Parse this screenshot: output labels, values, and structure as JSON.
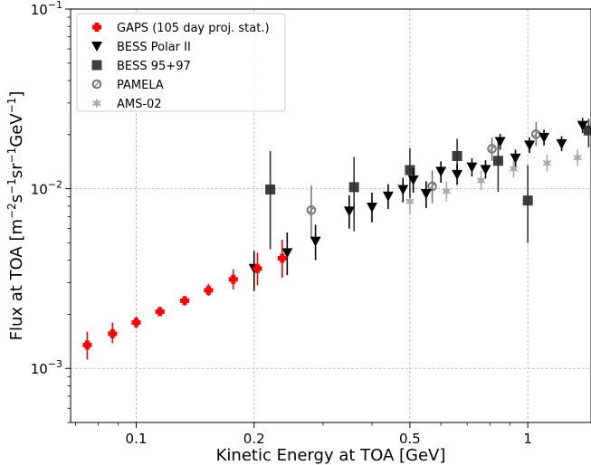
{
  "chart_data": {
    "type": "scatter",
    "xlabel": "Kinetic Energy at TOA [GeV]",
    "ylabel_parts": [
      "Flux at TOA [m",
      "−2",
      "s",
      "−1",
      "sr",
      "−1",
      "GeV",
      "−1",
      "]"
    ],
    "xscale": "log",
    "yscale": "log",
    "xlim": [
      0.068,
      1.45
    ],
    "ylim": [
      0.0005,
      0.1
    ],
    "grid": true,
    "legend_position": "top-left",
    "x_ticks": [
      {
        "value": 0.1,
        "label": "0.1"
      },
      {
        "value": 0.2,
        "label": "0.2"
      },
      {
        "value": 0.5,
        "label": "0.5"
      },
      {
        "value": 1,
        "label": "1"
      }
    ],
    "y_ticks": [
      {
        "value": 0.001,
        "base": "10",
        "exp": "−3"
      },
      {
        "value": 0.01,
        "base": "10",
        "exp": "−2"
      },
      {
        "value": 0.1,
        "base": "10",
        "exp": "−1"
      }
    ],
    "series": [
      {
        "name": "GAPS (105 day proj. stat.)",
        "marker": "square-cross",
        "color": "#ff0000",
        "points": [
          {
            "x": 0.075,
            "y": 0.00135,
            "lo": 0.00112,
            "hi": 0.0016
          },
          {
            "x": 0.087,
            "y": 0.00156,
            "lo": 0.00138,
            "hi": 0.0018
          },
          {
            "x": 0.1,
            "y": 0.0018,
            "lo": 0.00167,
            "hi": 0.00195
          },
          {
            "x": 0.115,
            "y": 0.00207,
            "lo": 0.00195,
            "hi": 0.0022
          },
          {
            "x": 0.133,
            "y": 0.00238,
            "lo": 0.00224,
            "hi": 0.00253
          },
          {
            "x": 0.153,
            "y": 0.00272,
            "lo": 0.00253,
            "hi": 0.00295
          },
          {
            "x": 0.177,
            "y": 0.00313,
            "lo": 0.00275,
            "hi": 0.00355
          },
          {
            "x": 0.204,
            "y": 0.0036,
            "lo": 0.0029,
            "hi": 0.0044
          },
          {
            "x": 0.236,
            "y": 0.0041,
            "lo": 0.0032,
            "hi": 0.0052
          }
        ]
      },
      {
        "name": "BESS Polar II",
        "marker": "triangle-down",
        "color": "#000000",
        "points": [
          {
            "x": 0.2,
            "y": 0.0036,
            "lo": 0.0027,
            "hi": 0.0045
          },
          {
            "x": 0.243,
            "y": 0.0044,
            "lo": 0.0033,
            "hi": 0.0057
          },
          {
            "x": 0.287,
            "y": 0.0051,
            "lo": 0.004,
            "hi": 0.0063
          },
          {
            "x": 0.35,
            "y": 0.0075,
            "lo": 0.006,
            "hi": 0.0092
          },
          {
            "x": 0.4,
            "y": 0.0079,
            "lo": 0.0065,
            "hi": 0.0095
          },
          {
            "x": 0.44,
            "y": 0.0091,
            "lo": 0.0077,
            "hi": 0.0106
          },
          {
            "x": 0.48,
            "y": 0.0099,
            "lo": 0.0084,
            "hi": 0.0115
          },
          {
            "x": 0.51,
            "y": 0.0112,
            "lo": 0.0095,
            "hi": 0.013
          },
          {
            "x": 0.55,
            "y": 0.0094,
            "lo": 0.0078,
            "hi": 0.011
          },
          {
            "x": 0.6,
            "y": 0.0125,
            "lo": 0.0108,
            "hi": 0.0142
          },
          {
            "x": 0.66,
            "y": 0.012,
            "lo": 0.0105,
            "hi": 0.0137
          },
          {
            "x": 0.72,
            "y": 0.0132,
            "lo": 0.0117,
            "hi": 0.0148
          },
          {
            "x": 0.78,
            "y": 0.0128,
            "lo": 0.0114,
            "hi": 0.0144
          },
          {
            "x": 0.85,
            "y": 0.0183,
            "lo": 0.0165,
            "hi": 0.0202
          },
          {
            "x": 0.93,
            "y": 0.0148,
            "lo": 0.0133,
            "hi": 0.0165
          },
          {
            "x": 1.01,
            "y": 0.0175,
            "lo": 0.0158,
            "hi": 0.0193
          },
          {
            "x": 1.1,
            "y": 0.0193,
            "lo": 0.0174,
            "hi": 0.0213
          },
          {
            "x": 1.22,
            "y": 0.0178,
            "lo": 0.0162,
            "hi": 0.0196
          },
          {
            "x": 1.38,
            "y": 0.0225,
            "lo": 0.0204,
            "hi": 0.0248
          }
        ]
      },
      {
        "name": "BESS 95+97",
        "marker": "square",
        "color": "#333333",
        "points": [
          {
            "x": 0.22,
            "y": 0.0099,
            "lo": 0.0046,
            "hi": 0.0162
          },
          {
            "x": 0.36,
            "y": 0.0102,
            "lo": 0.0058,
            "hi": 0.015
          },
          {
            "x": 0.5,
            "y": 0.0127,
            "lo": 0.0089,
            "hi": 0.0168
          },
          {
            "x": 0.66,
            "y": 0.0152,
            "lo": 0.0114,
            "hi": 0.019
          },
          {
            "x": 0.84,
            "y": 0.0143,
            "lo": 0.0096,
            "hi": 0.019
          },
          {
            "x": 1.0,
            "y": 0.0086,
            "lo": 0.005,
            "hi": 0.0135
          },
          {
            "x": 1.43,
            "y": 0.0211,
            "lo": 0.017,
            "hi": 0.0245
          }
        ]
      },
      {
        "name": "PAMELA",
        "marker": "circle-open",
        "color": "#777777",
        "points": [
          {
            "x": 0.28,
            "y": 0.0076,
            "lo": 0.0054,
            "hi": 0.0104
          },
          {
            "x": 0.57,
            "y": 0.0103,
            "lo": 0.0083,
            "hi": 0.0126
          },
          {
            "x": 0.81,
            "y": 0.0167,
            "lo": 0.0143,
            "hi": 0.0193
          },
          {
            "x": 1.05,
            "y": 0.0201,
            "lo": 0.0173,
            "hi": 0.0235
          }
        ]
      },
      {
        "name": "AMS-02",
        "marker": "star",
        "color": "#aaaaaa",
        "points": [
          {
            "x": 0.5,
            "y": 0.0085,
            "lo": 0.0072,
            "hi": 0.01
          },
          {
            "x": 0.62,
            "y": 0.0097,
            "lo": 0.0085,
            "hi": 0.011
          },
          {
            "x": 0.76,
            "y": 0.0111,
            "lo": 0.0098,
            "hi": 0.0126
          },
          {
            "x": 0.92,
            "y": 0.0129,
            "lo": 0.0115,
            "hi": 0.0145
          },
          {
            "x": 1.12,
            "y": 0.0139,
            "lo": 0.0125,
            "hi": 0.0155
          },
          {
            "x": 1.34,
            "y": 0.0149,
            "lo": 0.0134,
            "hi": 0.0165
          }
        ]
      }
    ]
  }
}
